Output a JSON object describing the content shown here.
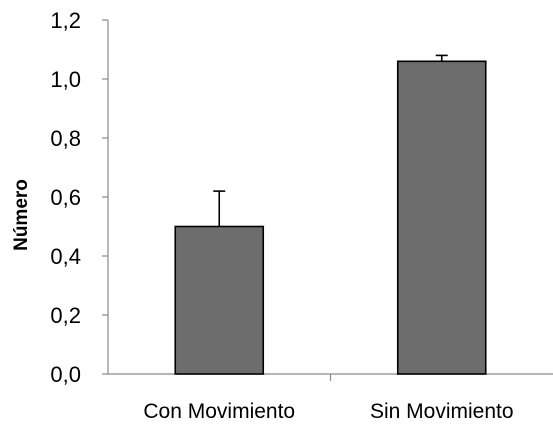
{
  "chart_data": {
    "type": "bar",
    "categories": [
      "Con Movimiento",
      "Sin Movimiento"
    ],
    "values": [
      0.5,
      1.06
    ],
    "error_plus": [
      0.12,
      0.02
    ],
    "ylabel": "Número",
    "xlabel": "",
    "ylim": [
      0,
      1.2
    ],
    "yticks": [
      "0,0",
      "0,2",
      "0,4",
      "0,6",
      "0,8",
      "1,0",
      "1,2"
    ],
    "grid": false,
    "bar_color": "#6d6d6d"
  }
}
